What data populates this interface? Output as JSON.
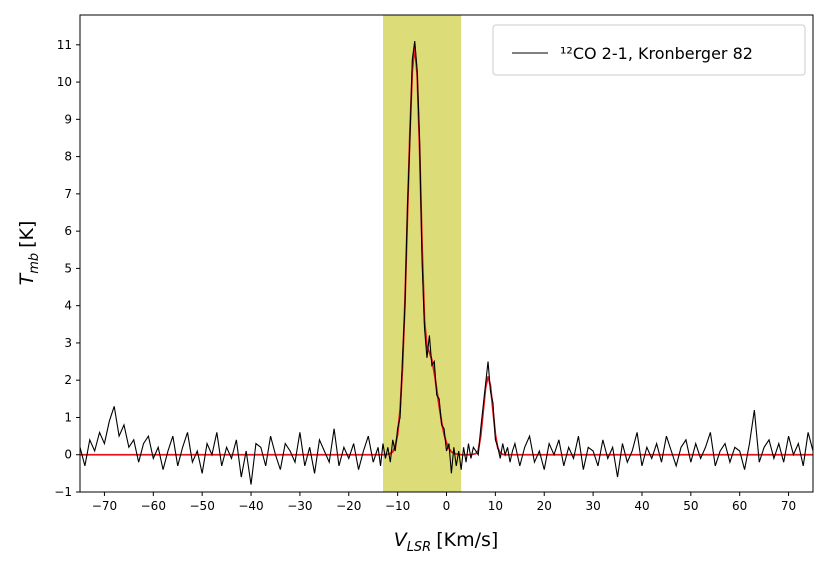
{
  "chart_data": {
    "type": "line",
    "xlabel": {
      "symbol": "V",
      "subscript": "LSR",
      "unit": "[Km/s]"
    },
    "ylabel": {
      "symbol": "T",
      "subscript": "mb",
      "unit": "[K]"
    },
    "xlim": [
      -75,
      75
    ],
    "ylim": [
      -1,
      11.8
    ],
    "xticks": [
      {
        "value": -70,
        "label": "−70"
      },
      {
        "value": -60,
        "label": "−60"
      },
      {
        "value": -50,
        "label": "−50"
      },
      {
        "value": -40,
        "label": "−40"
      },
      {
        "value": -30,
        "label": "−30"
      },
      {
        "value": -20,
        "label": "−20"
      },
      {
        "value": -10,
        "label": "−10"
      },
      0,
      10,
      20,
      30,
      40,
      50,
      60,
      70
    ],
    "yticks": [
      {
        "value": -1,
        "label": "−1"
      },
      0,
      1,
      2,
      3,
      4,
      5,
      6,
      7,
      8,
      9,
      10,
      11
    ],
    "span": {
      "xmin": -13,
      "xmax": 3,
      "color": "#dcdc78"
    },
    "legend": "upper right",
    "series": [
      {
        "color": "#e8141c",
        "x": [
          -75,
          -13,
          -12,
          -11.5,
          -11,
          -10.5,
          -10,
          -9.5,
          -9,
          -8.5,
          -8,
          -7.5,
          -7,
          -6.5,
          -6,
          -5.5,
          -5,
          -4.5,
          -4,
          -3.5,
          -3,
          -2.5,
          -2,
          -1.5,
          -1,
          -0.5,
          0,
          0.5,
          1,
          1.5,
          2,
          2.5,
          3,
          5,
          6,
          6.5,
          7,
          7.5,
          8,
          8.5,
          9,
          9.5,
          10,
          10.5,
          11,
          11.5,
          12,
          75
        ],
        "values": [
          0,
          0,
          0.01,
          0.03,
          0.08,
          0.22,
          0.55,
          1.2,
          2.35,
          4.1,
          6.4,
          8.6,
          10.3,
          10.95,
          10.2,
          8.2,
          5.6,
          3.6,
          2.9,
          2.75,
          2.55,
          2.2,
          1.75,
          1.3,
          0.88,
          0.55,
          0.32,
          0.17,
          0.08,
          0.04,
          0.02,
          0.01,
          0,
          0,
          0.03,
          0.12,
          0.5,
          1.15,
          1.8,
          2.1,
          1.85,
          1.2,
          0.55,
          0.18,
          0.05,
          0.01,
          0,
          0
        ]
      },
      {
        "name": "¹²CO 2-1, Kronberger 82",
        "color": "#000000",
        "x": [
          -75,
          -74,
          -73,
          -72,
          -71,
          -70,
          -69,
          -68,
          -67,
          -66,
          -65,
          -64,
          -63,
          -62,
          -61,
          -60,
          -59,
          -58,
          -57,
          -56,
          -55,
          -54,
          -53,
          -52,
          -51,
          -50,
          -49,
          -48,
          -47,
          -46,
          -45,
          -44,
          -43,
          -42,
          -41,
          -40,
          -39,
          -38,
          -37,
          -36,
          -35,
          -34,
          -33,
          -32,
          -31,
          -30,
          -29,
          -28,
          -27,
          -26,
          -25,
          -24,
          -23,
          -22,
          -21,
          -20,
          -19,
          -18,
          -17,
          -16,
          -15,
          -14,
          -13.5,
          -13,
          -12.5,
          -12,
          -11.5,
          -11,
          -10.5,
          -10,
          -9.5,
          -9,
          -8.5,
          -8,
          -7.5,
          -7,
          -6.5,
          -6,
          -5.5,
          -5,
          -4.5,
          -4,
          -3.5,
          -3,
          -2.5,
          -2,
          -1.5,
          -1,
          -0.5,
          0,
          0.5,
          1,
          1.5,
          2,
          2.5,
          3,
          3.5,
          4,
          4.5,
          5,
          5.5,
          6,
          6.5,
          7,
          7.5,
          8,
          8.5,
          9,
          9.5,
          10,
          10.5,
          11,
          11.5,
          12,
          12.5,
          13,
          13.5,
          14,
          15,
          16,
          17,
          18,
          19,
          20,
          21,
          22,
          23,
          24,
          25,
          26,
          27,
          28,
          29,
          30,
          31,
          32,
          33,
          34,
          35,
          36,
          37,
          38,
          39,
          40,
          41,
          42,
          43,
          44,
          45,
          46,
          47,
          48,
          49,
          50,
          51,
          52,
          53,
          54,
          55,
          56,
          57,
          58,
          59,
          60,
          61,
          62,
          63,
          64,
          65,
          66,
          67,
          68,
          69,
          70,
          71,
          72,
          73,
          74,
          75
        ],
        "values": [
          0.2,
          -0.3,
          0.4,
          0.1,
          0.6,
          0.3,
          0.9,
          1.3,
          0.5,
          0.8,
          0.2,
          0.4,
          -0.2,
          0.3,
          0.5,
          -0.1,
          0.2,
          -0.4,
          0.1,
          0.5,
          -0.3,
          0.2,
          0.6,
          -0.2,
          0.1,
          -0.5,
          0.3,
          0.0,
          0.6,
          -0.3,
          0.2,
          -0.1,
          0.4,
          -0.6,
          0.1,
          -0.8,
          0.3,
          0.2,
          -0.3,
          0.5,
          0.0,
          -0.4,
          0.3,
          0.1,
          -0.2,
          0.6,
          -0.3,
          0.2,
          -0.5,
          0.4,
          0.1,
          -0.2,
          0.7,
          -0.3,
          0.2,
          -0.1,
          0.3,
          -0.4,
          0.1,
          0.5,
          -0.2,
          0.2,
          -0.3,
          0.3,
          -0.1,
          0.2,
          -0.2,
          0.4,
          0.1,
          0.7,
          1.0,
          2.6,
          4.0,
          6.6,
          8.4,
          10.6,
          11.1,
          10.3,
          8.4,
          5.2,
          3.4,
          2.6,
          3.2,
          2.4,
          2.5,
          1.6,
          1.5,
          0.8,
          0.7,
          0.1,
          0.3,
          -0.5,
          0.2,
          -0.3,
          0.1,
          -0.4,
          0.2,
          -0.2,
          0.3,
          -0.1,
          0.2,
          0.1,
          0.0,
          0.7,
          1.3,
          1.9,
          2.5,
          1.7,
          1.4,
          0.4,
          0.2,
          -0.1,
          0.3,
          0.0,
          0.2,
          -0.2,
          0.1,
          0.3,
          -0.3,
          0.2,
          0.5,
          -0.2,
          0.1,
          -0.4,
          0.3,
          0.0,
          0.4,
          -0.3,
          0.2,
          -0.1,
          0.5,
          -0.4,
          0.2,
          0.1,
          -0.3,
          0.4,
          -0.1,
          0.2,
          -0.6,
          0.3,
          -0.2,
          0.1,
          0.6,
          -0.3,
          0.2,
          -0.1,
          0.3,
          -0.2,
          0.5,
          0.1,
          -0.3,
          0.2,
          0.4,
          -0.2,
          0.3,
          -0.1,
          0.2,
          0.6,
          -0.3,
          0.1,
          0.3,
          -0.2,
          0.2,
          0.1,
          -0.4,
          0.3,
          1.2,
          -0.2,
          0.2,
          0.4,
          -0.1,
          0.3,
          -0.2,
          0.5,
          0.0,
          0.3,
          -0.3,
          0.6,
          0.1
        ]
      }
    ]
  }
}
